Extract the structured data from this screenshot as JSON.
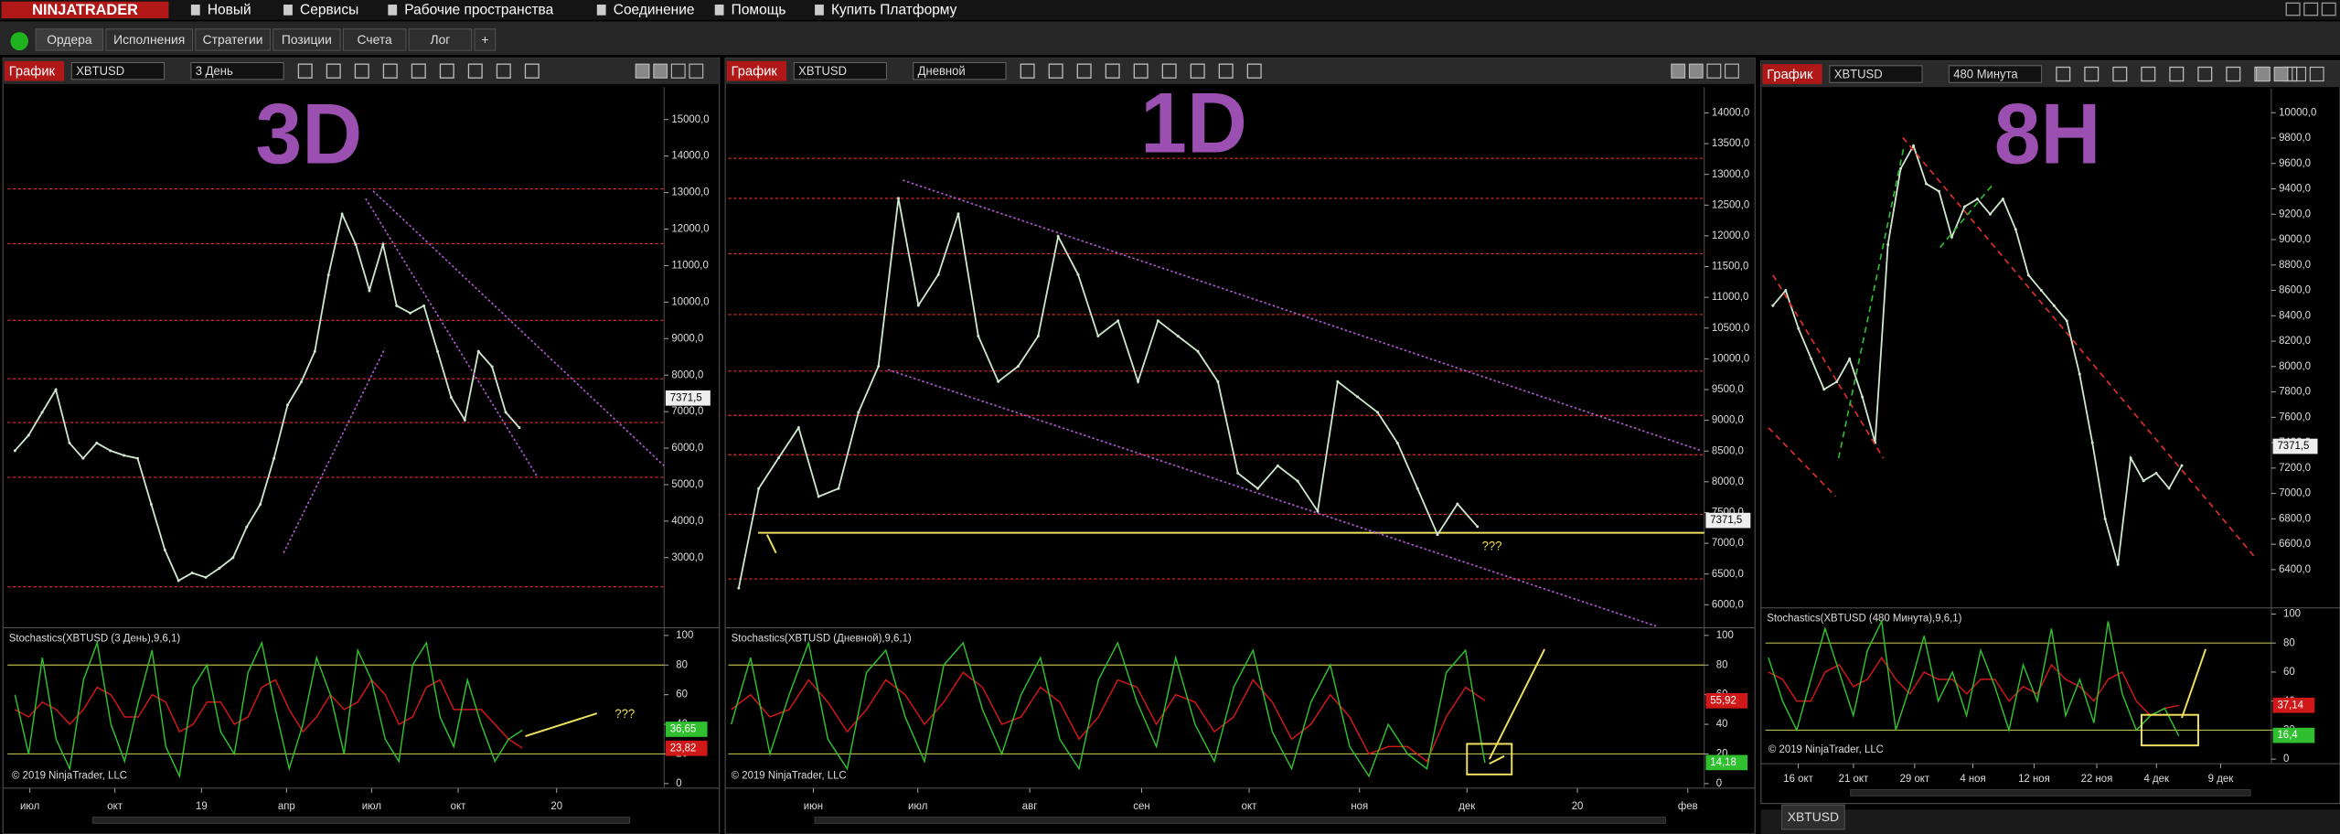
{
  "menu": {
    "logo": "NINJATRADER",
    "items": [
      "Новый",
      "Сервисы",
      "Рабочие пространства",
      "Соединение",
      "Помощь",
      "Купить Платформу"
    ]
  },
  "tabs": [
    "Ордера",
    "Исполнения",
    "Стратегии",
    "Позиции",
    "Счета",
    "Лог",
    "+"
  ],
  "footer_tab": "XBTUSD",
  "chart_data": [
    {
      "type": "line",
      "toolbar": {
        "label": "График",
        "instrument": "XBTUSD",
        "interval": "3 День"
      },
      "watermark": "3D",
      "ylim": [
        1120,
        15890
      ],
      "yticks": [
        {
          "value": 15000,
          "label": "15000,0"
        },
        {
          "value": 14000,
          "label": "14000,0"
        },
        {
          "value": 13000,
          "label": "13000,0"
        },
        {
          "value": 12000,
          "label": "12000,0"
        },
        {
          "value": 11000,
          "label": "11000,0"
        },
        {
          "value": 10000,
          "label": "10000,0"
        },
        {
          "value": 9000,
          "label": "9000,0"
        },
        {
          "value": 8000,
          "label": "8000,0"
        },
        {
          "value": 7000,
          "label": "7000,0"
        },
        {
          "value": 6000,
          "label": "6000,0"
        },
        {
          "value": 5000,
          "label": "5000,0"
        },
        {
          "value": 4000,
          "label": "4000,0"
        },
        {
          "value": 3000,
          "label": "3000,0"
        }
      ],
      "values": [
        5930,
        6350,
        6980,
        7600,
        6140,
        5720,
        6140,
        5930,
        5800,
        5720,
        4460,
        3210,
        2370,
        2580,
        2460,
        2710,
        3000,
        3840,
        4460,
        5720,
        7180,
        7810,
        8650,
        10740,
        12410,
        11580,
        10320,
        11580,
        9900,
        9700,
        9900,
        8650,
        7390,
        6770,
        8650,
        8230,
        6980,
        6560
      ],
      "color": "#cfe8cf",
      "levels": [
        13100,
        11600,
        9500,
        7900,
        6700,
        5200,
        2200
      ],
      "level_color": "#e0302a",
      "current_price": {
        "value": 7371.5,
        "label": "7371,5"
      },
      "x_labels": [
        "июл",
        "окт",
        "19",
        "апр",
        "июл",
        "окт",
        "20"
      ],
      "annotation": "???",
      "stochastic": {
        "title": "Stochastics(XBTUSD (3 День),9,6,1)",
        "ylim": [
          0,
          100
        ],
        "yticks": [
          100,
          80,
          60,
          40,
          20,
          0
        ],
        "k_values": [
          60,
          20,
          85,
          30,
          10,
          70,
          95,
          40,
          15,
          55,
          90,
          25,
          5,
          65,
          80,
          35,
          20,
          75,
          95,
          50,
          10,
          40,
          85,
          60,
          20,
          90,
          70,
          30,
          15,
          80,
          95,
          45,
          25,
          70,
          40,
          15,
          30,
          36
        ],
        "d_values": [
          50,
          45,
          55,
          50,
          40,
          50,
          65,
          60,
          45,
          45,
          60,
          55,
          35,
          40,
          55,
          55,
          40,
          45,
          65,
          70,
          50,
          35,
          45,
          60,
          50,
          55,
          70,
          60,
          40,
          45,
          65,
          70,
          50,
          50,
          50,
          40,
          30,
          24
        ],
        "k_color": "#2fbf2f",
        "d_color": "#d01818",
        "k_label": {
          "value": 36.65,
          "label": "36,65"
        },
        "d_label": {
          "value": 23.82,
          "label": "23,82"
        },
        "bands": [
          80,
          20
        ],
        "copyright": "© 2019 NinjaTrader, LLC"
      }
    },
    {
      "type": "line",
      "toolbar": {
        "label": "График",
        "instrument": "XBTUSD",
        "interval": "Дневной"
      },
      "watermark": "1D",
      "ylim": [
        5650,
        14420
      ],
      "yticks": [
        {
          "value": 14000,
          "label": "14000,0"
        },
        {
          "value": 13500,
          "label": "13500,0"
        },
        {
          "value": 13000,
          "label": "13000,0"
        },
        {
          "value": 12500,
          "label": "12500,0"
        },
        {
          "value": 12000,
          "label": "12000,0"
        },
        {
          "value": 11500,
          "label": "11500,0"
        },
        {
          "value": 11000,
          "label": "11000,0"
        },
        {
          "value": 10500,
          "label": "10500,0"
        },
        {
          "value": 10000,
          "label": "10000,0"
        },
        {
          "value": 9500,
          "label": "9500,0"
        },
        {
          "value": 9000,
          "label": "9000,0"
        },
        {
          "value": 8500,
          "label": "8500,0"
        },
        {
          "value": 8000,
          "label": "8000,0"
        },
        {
          "value": 7500,
          "label": "7500,0"
        },
        {
          "value": 7000,
          "label": "7000,0"
        },
        {
          "value": 6500,
          "label": "6500,0"
        },
        {
          "value": 6000,
          "label": "6000,0"
        }
      ],
      "values": [
        6270,
        7890,
        8390,
        8880,
        7760,
        7890,
        9130,
        9880,
        12610,
        10870,
        11370,
        12360,
        10370,
        9630,
        9880,
        10370,
        11990,
        11370,
        10370,
        10620,
        9630,
        10620,
        10370,
        10120,
        9630,
        8140,
        7890,
        8260,
        8010,
        7520,
        9630,
        9380,
        9130,
        8630,
        7890,
        7140,
        7640,
        7270
      ],
      "color": "#cfe8cf",
      "levels": [
        13260,
        12610,
        11710,
        10720,
        9800,
        9080,
        8440,
        7470,
        6420
      ],
      "level_color": "#e0302a",
      "support_level": 7170,
      "support_color": "#f0e060",
      "current_price": {
        "value": 7371.5,
        "label": "7371,5"
      },
      "x_labels": [
        "июн",
        "июл",
        "авг",
        "сен",
        "окт",
        "ноя",
        "дек",
        "20",
        "фев"
      ],
      "annotation": "???",
      "stochastic": {
        "title": "Stochastics(XBTUSD (Дневной),9,6,1)",
        "ylim": [
          0,
          100
        ],
        "yticks": [
          100,
          80,
          60,
          40,
          20,
          0
        ],
        "k_values": [
          40,
          85,
          20,
          60,
          95,
          30,
          10,
          75,
          90,
          45,
          15,
          80,
          95,
          50,
          20,
          60,
          85,
          30,
          10,
          70,
          95,
          55,
          25,
          85,
          40,
          15,
          65,
          90,
          35,
          10,
          55,
          80,
          25,
          5,
          40,
          20,
          10,
          75,
          90,
          14
        ],
        "d_values": [
          50,
          60,
          45,
          50,
          70,
          55,
          35,
          50,
          70,
          60,
          40,
          55,
          75,
          65,
          40,
          45,
          65,
          55,
          30,
          45,
          70,
          65,
          40,
          60,
          55,
          35,
          45,
          70,
          55,
          30,
          40,
          60,
          45,
          20,
          25,
          25,
          15,
          45,
          65,
          56
        ],
        "k_color": "#2fbf2f",
        "d_color": "#d01818",
        "k_label": {
          "value": 14.18,
          "label": "14,18"
        },
        "d_label": {
          "value": 55.92,
          "label": "55,92"
        },
        "bands": [
          80,
          20
        ],
        "copyright": "© 2019 NinjaTrader, LLC"
      }
    },
    {
      "type": "line",
      "toolbar": {
        "label": "График",
        "instrument": "XBTUSD",
        "interval": "480 Минута"
      },
      "watermark": "8H",
      "ylim": [
        6110,
        10190
      ],
      "yticks": [
        {
          "value": 10000,
          "label": "10000,0"
        },
        {
          "value": 9800,
          "label": "9800,0"
        },
        {
          "value": 9600,
          "label": "9600,0"
        },
        {
          "value": 9400,
          "label": "9400,0"
        },
        {
          "value": 9200,
          "label": "9200,0"
        },
        {
          "value": 9000,
          "label": "9000,0"
        },
        {
          "value": 8800,
          "label": "8800,0"
        },
        {
          "value": 8600,
          "label": "8600,0"
        },
        {
          "value": 8400,
          "label": "8400,0"
        },
        {
          "value": 8200,
          "label": "8200,0"
        },
        {
          "value": 8000,
          "label": "8000,0"
        },
        {
          "value": 7800,
          "label": "7800,0"
        },
        {
          "value": 7600,
          "label": "7600,0"
        },
        {
          "value": 7400,
          "label": "7400,0"
        },
        {
          "value": 7200,
          "label": "7200,0"
        },
        {
          "value": 7000,
          "label": "7000,0"
        },
        {
          "value": 6800,
          "label": "6800,0"
        },
        {
          "value": 6600,
          "label": "6600,0"
        },
        {
          "value": 6400,
          "label": "6400,0"
        }
      ],
      "values": [
        8480,
        8600,
        8300,
        8060,
        7820,
        7880,
        8060,
        7760,
        7400,
        8960,
        9560,
        9740,
        9440,
        9380,
        9020,
        9260,
        9320,
        9200,
        9320,
        9080,
        8720,
        8600,
        8480,
        8360,
        7940,
        7400,
        6800,
        6440,
        7280,
        7100,
        7160,
        7040,
        7220
      ],
      "color": "#cfe8cf",
      "current_price": {
        "value": 7371.5,
        "label": "7371,5"
      },
      "x_labels": [
        "16 окт",
        "21 окт",
        "29 окт",
        "4 ноя",
        "12 ноя",
        "22 ноя",
        "4 дек",
        "9 дек"
      ],
      "stochastic": {
        "title": "Stochastics(XBTUSD (480 Минута),9,6,1)",
        "ylim": [
          0,
          100
        ],
        "yticks": [
          100,
          80,
          60,
          40,
          20,
          0
        ],
        "k_values": [
          70,
          40,
          20,
          55,
          90,
          60,
          30,
          75,
          95,
          20,
          50,
          85,
          40,
          60,
          30,
          75,
          50,
          20,
          65,
          40,
          90,
          30,
          55,
          25,
          95,
          45,
          20,
          30,
          35,
          16
        ],
        "d_values": [
          60,
          55,
          40,
          40,
          60,
          65,
          50,
          55,
          70,
          55,
          45,
          60,
          55,
          55,
          45,
          55,
          55,
          40,
          50,
          45,
          65,
          55,
          50,
          40,
          55,
          60,
          40,
          30,
          35,
          37
        ],
        "k_color": "#2fbf2f",
        "d_color": "#d01818",
        "k_label": {
          "value": 16.4,
          "label": "16,4"
        },
        "d_label": {
          "value": 37.14,
          "label": "37,14"
        },
        "bands": [
          80,
          20
        ],
        "copyright": "© 2019 NinjaTrader, LLC"
      }
    }
  ]
}
